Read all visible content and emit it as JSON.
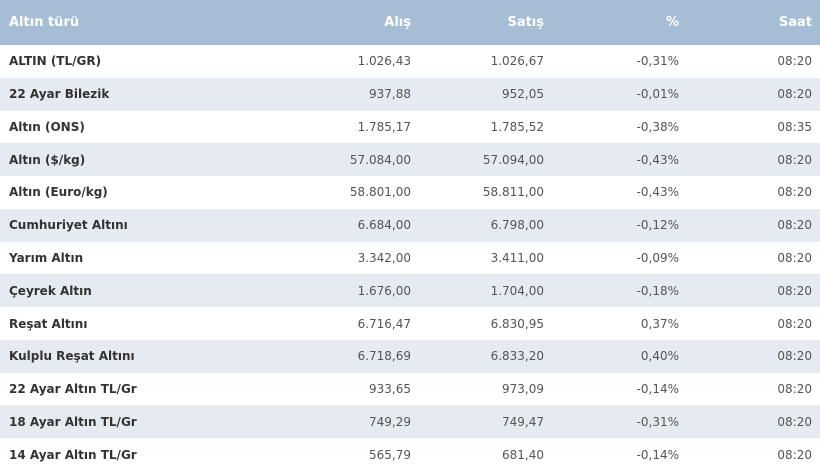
{
  "table": {
    "headers": {
      "name": "Altın türü",
      "buy": "Alış",
      "sell": "Satış",
      "change": "%",
      "time": "Saat"
    },
    "rows": [
      {
        "name": "ALTIN (TL/GR)",
        "buy": "1.026,43",
        "sell": "1.026,67",
        "change": "-0,31%",
        "time": "08:20"
      },
      {
        "name": "22 Ayar Bilezik",
        "buy": "937,88",
        "sell": "952,05",
        "change": "-0,01%",
        "time": "08:20"
      },
      {
        "name": "Altın (ONS)",
        "buy": "1.785,17",
        "sell": "1.785,52",
        "change": "-0,38%",
        "time": "08:35"
      },
      {
        "name": "Altın ($/kg)",
        "buy": "57.084,00",
        "sell": "57.094,00",
        "change": "-0,43%",
        "time": "08:20"
      },
      {
        "name": "Altın (Euro/kg)",
        "buy": "58.801,00",
        "sell": "58.811,00",
        "change": "-0,43%",
        "time": "08:20"
      },
      {
        "name": "Cumhuriyet Altını",
        "buy": "6.684,00",
        "sell": "6.798,00",
        "change": "-0,12%",
        "time": "08:20"
      },
      {
        "name": "Yarım Altın",
        "buy": "3.342,00",
        "sell": "3.411,00",
        "change": "-0,09%",
        "time": "08:20"
      },
      {
        "name": "Çeyrek Altın",
        "buy": "1.676,00",
        "sell": "1.704,00",
        "change": "-0,18%",
        "time": "08:20"
      },
      {
        "name": "Reşat Altını",
        "buy": "6.716,47",
        "sell": "6.830,95",
        "change": "0,37%",
        "time": "08:20"
      },
      {
        "name": "Kulplu Reşat Altını",
        "buy": "6.718,69",
        "sell": "6.833,20",
        "change": "0,40%",
        "time": "08:20"
      },
      {
        "name": "22 Ayar Altın TL/Gr",
        "buy": "933,65",
        "sell": "973,09",
        "change": "-0,14%",
        "time": "08:20"
      },
      {
        "name": "18 Ayar Altın TL/Gr",
        "buy": "749,29",
        "sell": "749,47",
        "change": "-0,31%",
        "time": "08:20"
      },
      {
        "name": "14 Ayar Altın TL/Gr",
        "buy": "565,79",
        "sell": "681,40",
        "change": "-0,14%",
        "time": "08:20"
      }
    ]
  }
}
